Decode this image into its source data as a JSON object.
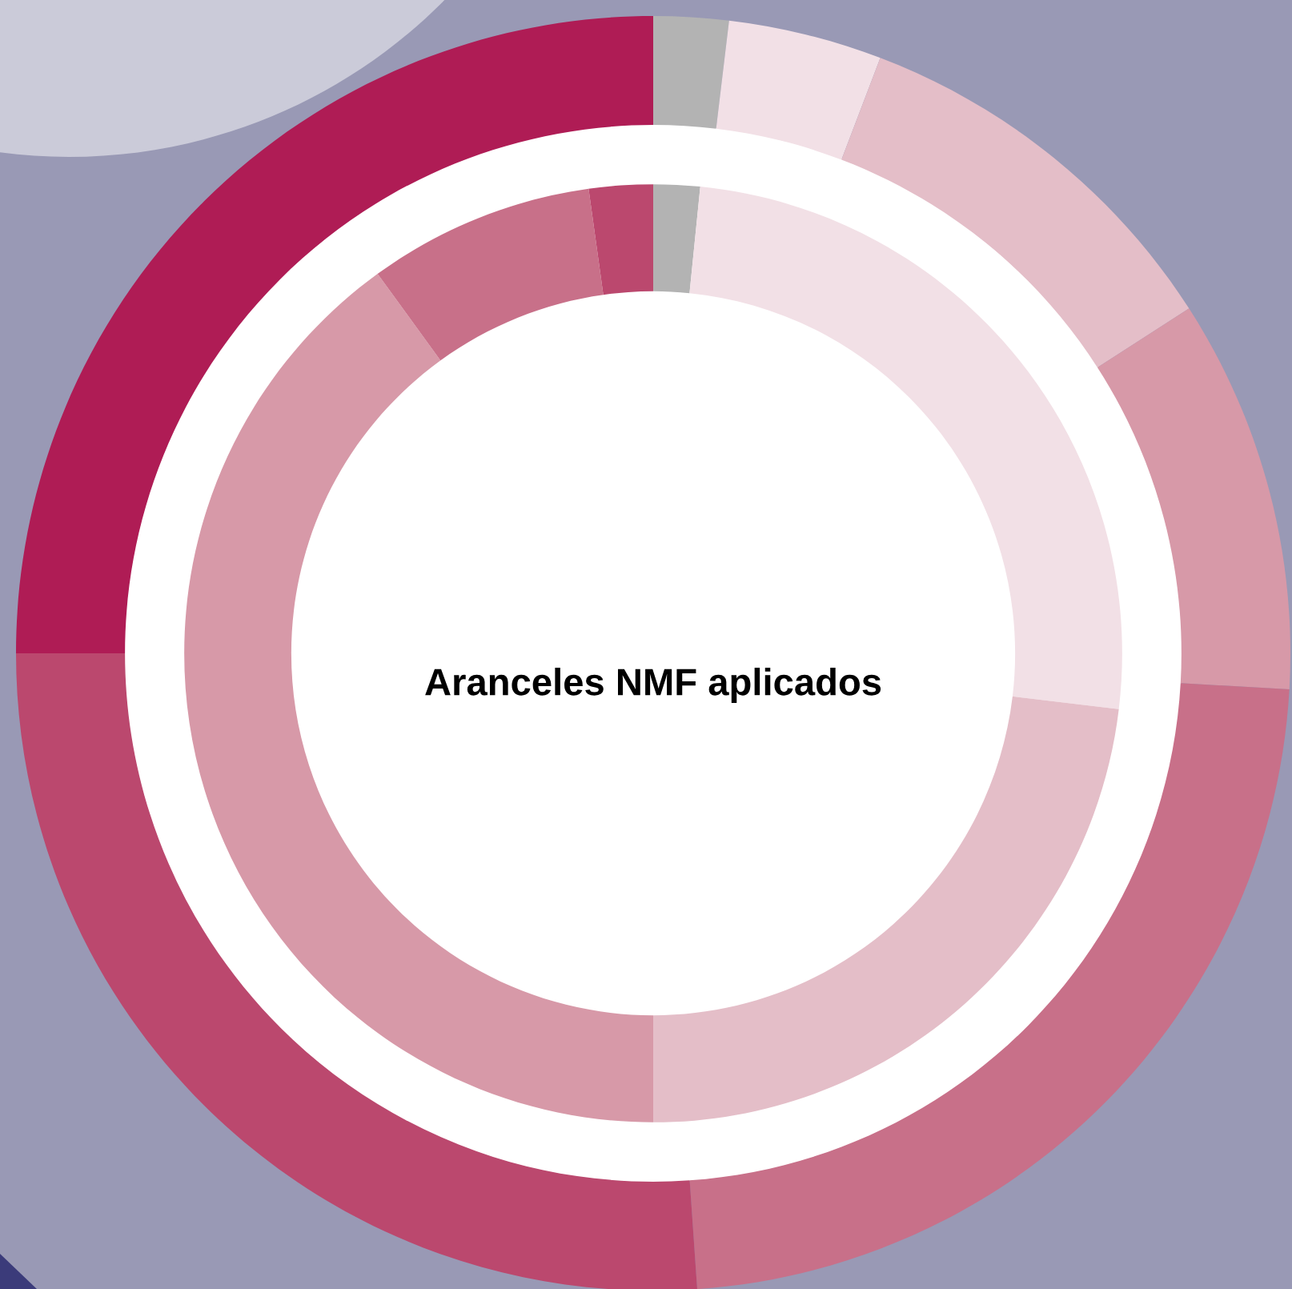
{
  "chart_data": {
    "type": "donut",
    "title": "Aranceles NMF aplicados",
    "series": [
      {
        "values": [
          1.9,
          3.9,
          10.1,
          10.0,
          23.0,
          26.1,
          25.0
        ],
        "colors": [
          "#b3b3b3",
          "#f2e0e6",
          "#e4bec8",
          "#d799a8",
          "#c87089",
          "#bb486e",
          "#af1c55"
        ]
      },
      {
        "values": [
          1.6,
          25.3,
          23.1,
          40.0,
          7.8,
          2.2
        ],
        "colors": [
          "#b3b3b3",
          "#f2e0e6",
          "#e4bec8",
          "#d799a8",
          "#c87089",
          "#bb486e"
        ]
      }
    ]
  }
}
